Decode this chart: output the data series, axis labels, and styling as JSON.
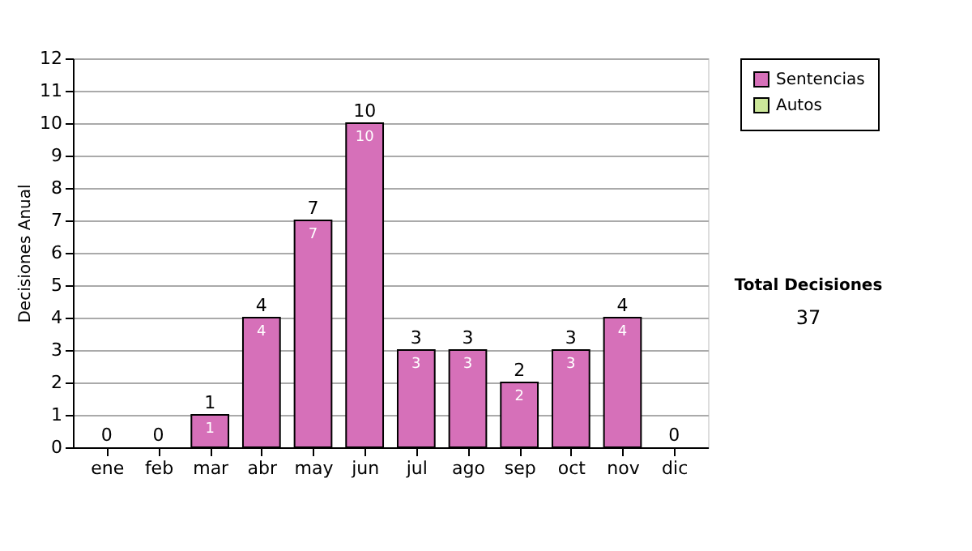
{
  "chart_data": {
    "type": "bar",
    "ylabel": "Decisiones Anual",
    "categories": [
      "ene",
      "feb",
      "mar",
      "abr",
      "may",
      "jun",
      "jul",
      "ago",
      "sep",
      "oct",
      "nov",
      "dic"
    ],
    "series": [
      {
        "name": "Sentencias",
        "color": "#d670b9",
        "values": [
          0,
          0,
          1,
          4,
          7,
          10,
          3,
          3,
          2,
          3,
          4,
          0
        ],
        "value_labels": [
          null,
          null,
          "1",
          "4",
          "7",
          "10",
          "3",
          "3",
          "2",
          "3",
          "4",
          null
        ]
      },
      {
        "name": "Autos",
        "color": "#cce79a",
        "values": [
          0,
          0,
          0,
          0,
          0,
          0,
          0,
          0,
          0,
          0,
          0,
          0
        ]
      }
    ],
    "stacked": true,
    "totals": [
      "0",
      "0",
      "1",
      "4",
      "7",
      "10",
      "3",
      "3",
      "2",
      "3",
      "4",
      "0"
    ],
    "ylim": [
      0,
      12
    ],
    "yticks": [
      0,
      1,
      2,
      3,
      4,
      5,
      6,
      7,
      8,
      9,
      10,
      11,
      12
    ],
    "grid": "y",
    "legend": "right",
    "annotations": [
      "Total Decisiones",
      "37"
    ]
  }
}
